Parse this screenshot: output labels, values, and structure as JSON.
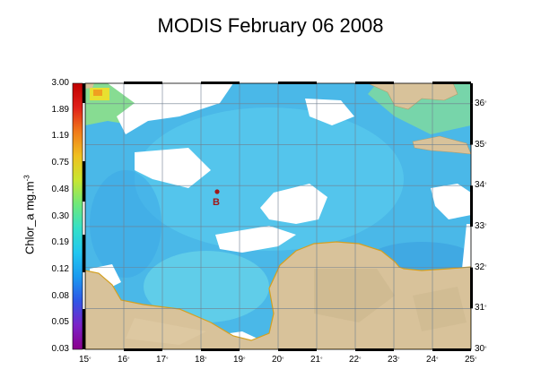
{
  "title": "MODIS February 06 2008",
  "colorbar": {
    "label_main": "Chlor_a mg.m",
    "label_sup": "-3",
    "ticks": [
      "3.00",
      "1.89",
      "1.19",
      "0.75",
      "0.48",
      "0.30",
      "0.19",
      "0.12",
      "0.08",
      "0.05",
      "0.03"
    ],
    "gradient": [
      "#8b008b",
      "#7b22c8",
      "#2f56e6",
      "#1a9af0",
      "#22c7f0",
      "#34e0c8",
      "#6ee87a",
      "#c8e632",
      "#f0c020",
      "#f07a1a",
      "#e0201a",
      "#c00000"
    ]
  },
  "map": {
    "marker_label": "B",
    "lat_labels": [
      "36",
      "35",
      "34",
      "33",
      "32",
      "31",
      "30"
    ],
    "lon_labels": [
      "15",
      "16",
      "17",
      "18",
      "19",
      "20",
      "21",
      "22",
      "23",
      "24",
      "25"
    ],
    "degree_symbol": "°",
    "colors": {
      "sea": "#4ab8e8",
      "land": "#d8c29a",
      "cloud": "#ffffff",
      "coast_edge": "#d4a020",
      "grid": "#6f7f8f",
      "marker": "#a01818"
    }
  }
}
